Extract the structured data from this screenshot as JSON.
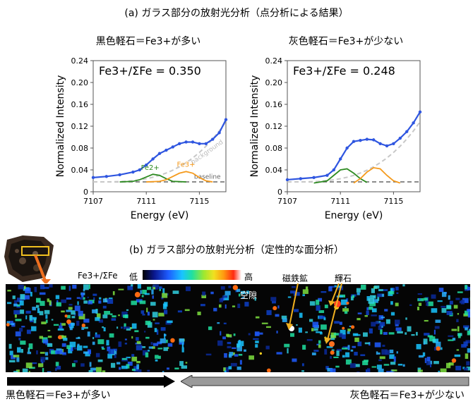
{
  "section_a_title": "(a) ガラス部分の放射光分析（点分析による結果）",
  "section_b_title": "(b) ガラス部分の放射光分析（定性的な面分析）",
  "chart_data": [
    {
      "type": "line",
      "title": "黒色軽石＝Fe3+が多い",
      "ratio_label": "Fe3+/ΣFe = 0.350",
      "xlabel": "Energy (eV)",
      "ylabel": "Normalized Intensity",
      "xlim": [
        7107,
        7117
      ],
      "ylim": [
        0,
        0.24
      ],
      "xticks": [
        "7107",
        "7111",
        "7115"
      ],
      "yticks": [
        "0",
        "0.04",
        "0.08",
        "0.12",
        "0.16",
        "0.20",
        "0.24"
      ],
      "peak_labels": [
        "Fe2+",
        "Fe3+"
      ],
      "annotations": [
        "background",
        "baseline"
      ],
      "series": [
        {
          "name": "",
          "color": "#2f56e0",
          "x": [
            7107,
            7108,
            7109,
            7110,
            7110.5,
            7111,
            7111.5,
            7112,
            7112.5,
            7113,
            7113.5,
            7114,
            7114.5,
            7115,
            7115.5,
            7116,
            7116.5,
            7117
          ],
          "values": [
            0.026,
            0.028,
            0.031,
            0.036,
            0.04,
            0.049,
            0.06,
            0.07,
            0.076,
            0.082,
            0.088,
            0.091,
            0.091,
            0.088,
            0.088,
            0.096,
            0.108,
            0.132
          ]
        },
        {
          "name": "Fe2+",
          "color": "#2e8b22",
          "x": [
            7109,
            7110,
            7110.5,
            7111,
            7111.5,
            7112,
            7112.5,
            7113,
            7114
          ],
          "values": [
            0.018,
            0.019,
            0.022,
            0.027,
            0.032,
            0.03,
            0.024,
            0.019,
            0.018
          ]
        },
        {
          "name": "Fe3+",
          "color": "#f59a1c",
          "x": [
            7111,
            7112,
            7112.5,
            7113,
            7113.5,
            7114,
            7114.5,
            7115,
            7115.5,
            7116
          ],
          "values": [
            0.018,
            0.019,
            0.022,
            0.028,
            0.034,
            0.037,
            0.034,
            0.026,
            0.02,
            0.018
          ]
        }
      ]
    },
    {
      "type": "line",
      "title": "灰色軽石＝Fe3+が少ない",
      "ratio_label": "Fe3+/ΣFe = 0.248",
      "xlabel": "Energy (eV)",
      "ylabel": "Normalized Intensity",
      "xlim": [
        7107,
        7117
      ],
      "ylim": [
        0,
        0.24
      ],
      "xticks": [
        "7107",
        "7111",
        "7115"
      ],
      "yticks": [
        "0",
        "0.04",
        "0.08",
        "0.12",
        "0.16",
        "0.20",
        "0.24"
      ],
      "series": [
        {
          "name": "",
          "color": "#2f56e0",
          "x": [
            7107,
            7108,
            7109,
            7110,
            7110.5,
            7111,
            7111.5,
            7112,
            7112.5,
            7113,
            7113.5,
            7114,
            7114.5,
            7115,
            7115.5,
            7116,
            7116.5,
            7117
          ],
          "values": [
            0.022,
            0.024,
            0.026,
            0.03,
            0.04,
            0.06,
            0.08,
            0.092,
            0.094,
            0.096,
            0.095,
            0.088,
            0.084,
            0.088,
            0.098,
            0.11,
            0.126,
            0.146
          ]
        },
        {
          "name": "Fe2+",
          "color": "#2e8b22",
          "x": [
            7109,
            7110,
            7110.5,
            7111,
            7111.5,
            7112,
            7112.5,
            7113
          ],
          "values": [
            0.016,
            0.02,
            0.03,
            0.04,
            0.042,
            0.034,
            0.024,
            0.017
          ]
        },
        {
          "name": "Fe3+",
          "color": "#f59a1c",
          "x": [
            7112,
            7112.5,
            7113,
            7113.5,
            7114,
            7114.5,
            7115,
            7115.5
          ],
          "values": [
            0.016,
            0.024,
            0.036,
            0.044,
            0.042,
            0.03,
            0.02,
            0.016
          ]
        }
      ]
    }
  ],
  "map": {
    "legend_label": "Fe3+/ΣFe",
    "legend_low": "低",
    "legend_high": "高",
    "void_label": "空隙",
    "magnetite_label": "磁鉄鉱",
    "pyroxene_label": "輝石",
    "bottom_left_label": "黒色軽石＝Fe3+が多い",
    "bottom_right_label": "灰色軽石＝Fe3+が少ない"
  }
}
